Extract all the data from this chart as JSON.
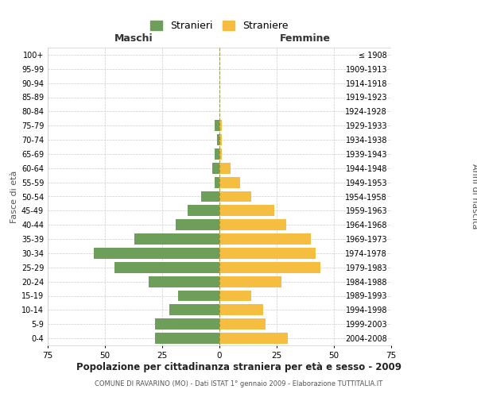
{
  "age_groups": [
    "0-4",
    "5-9",
    "10-14",
    "15-19",
    "20-24",
    "25-29",
    "30-34",
    "35-39",
    "40-44",
    "45-49",
    "50-54",
    "55-59",
    "60-64",
    "65-69",
    "70-74",
    "75-79",
    "80-84",
    "85-89",
    "90-94",
    "95-99",
    "100+"
  ],
  "birth_years": [
    "2004-2008",
    "1999-2003",
    "1994-1998",
    "1989-1993",
    "1984-1988",
    "1979-1983",
    "1974-1978",
    "1969-1973",
    "1964-1968",
    "1959-1963",
    "1954-1958",
    "1949-1953",
    "1944-1948",
    "1939-1943",
    "1934-1938",
    "1929-1933",
    "1924-1928",
    "1919-1923",
    "1914-1918",
    "1909-1913",
    "≤ 1908"
  ],
  "males": [
    28,
    28,
    22,
    18,
    31,
    46,
    55,
    37,
    19,
    14,
    8,
    2,
    3,
    2,
    1,
    2,
    0,
    0,
    0,
    0,
    0
  ],
  "females": [
    30,
    20,
    19,
    14,
    27,
    44,
    42,
    40,
    29,
    24,
    14,
    9,
    5,
    1,
    1,
    1,
    0,
    0,
    0,
    0,
    0
  ],
  "male_color": "#6d9e5a",
  "female_color": "#f5be41",
  "background_color": "#ffffff",
  "grid_color": "#cccccc",
  "title": "Popolazione per cittadinanza straniera per età e sesso - 2009",
  "subtitle": "COMUNE DI RAVARINO (MO) - Dati ISTAT 1° gennaio 2009 - Elaborazione TUTTITALIA.IT",
  "xlabel_left": "Maschi",
  "xlabel_right": "Femmine",
  "ylabel_left": "Fasce di età",
  "ylabel_right": "Anni di nascita",
  "legend_males": "Stranieri",
  "legend_females": "Straniere",
  "xlim": 75
}
